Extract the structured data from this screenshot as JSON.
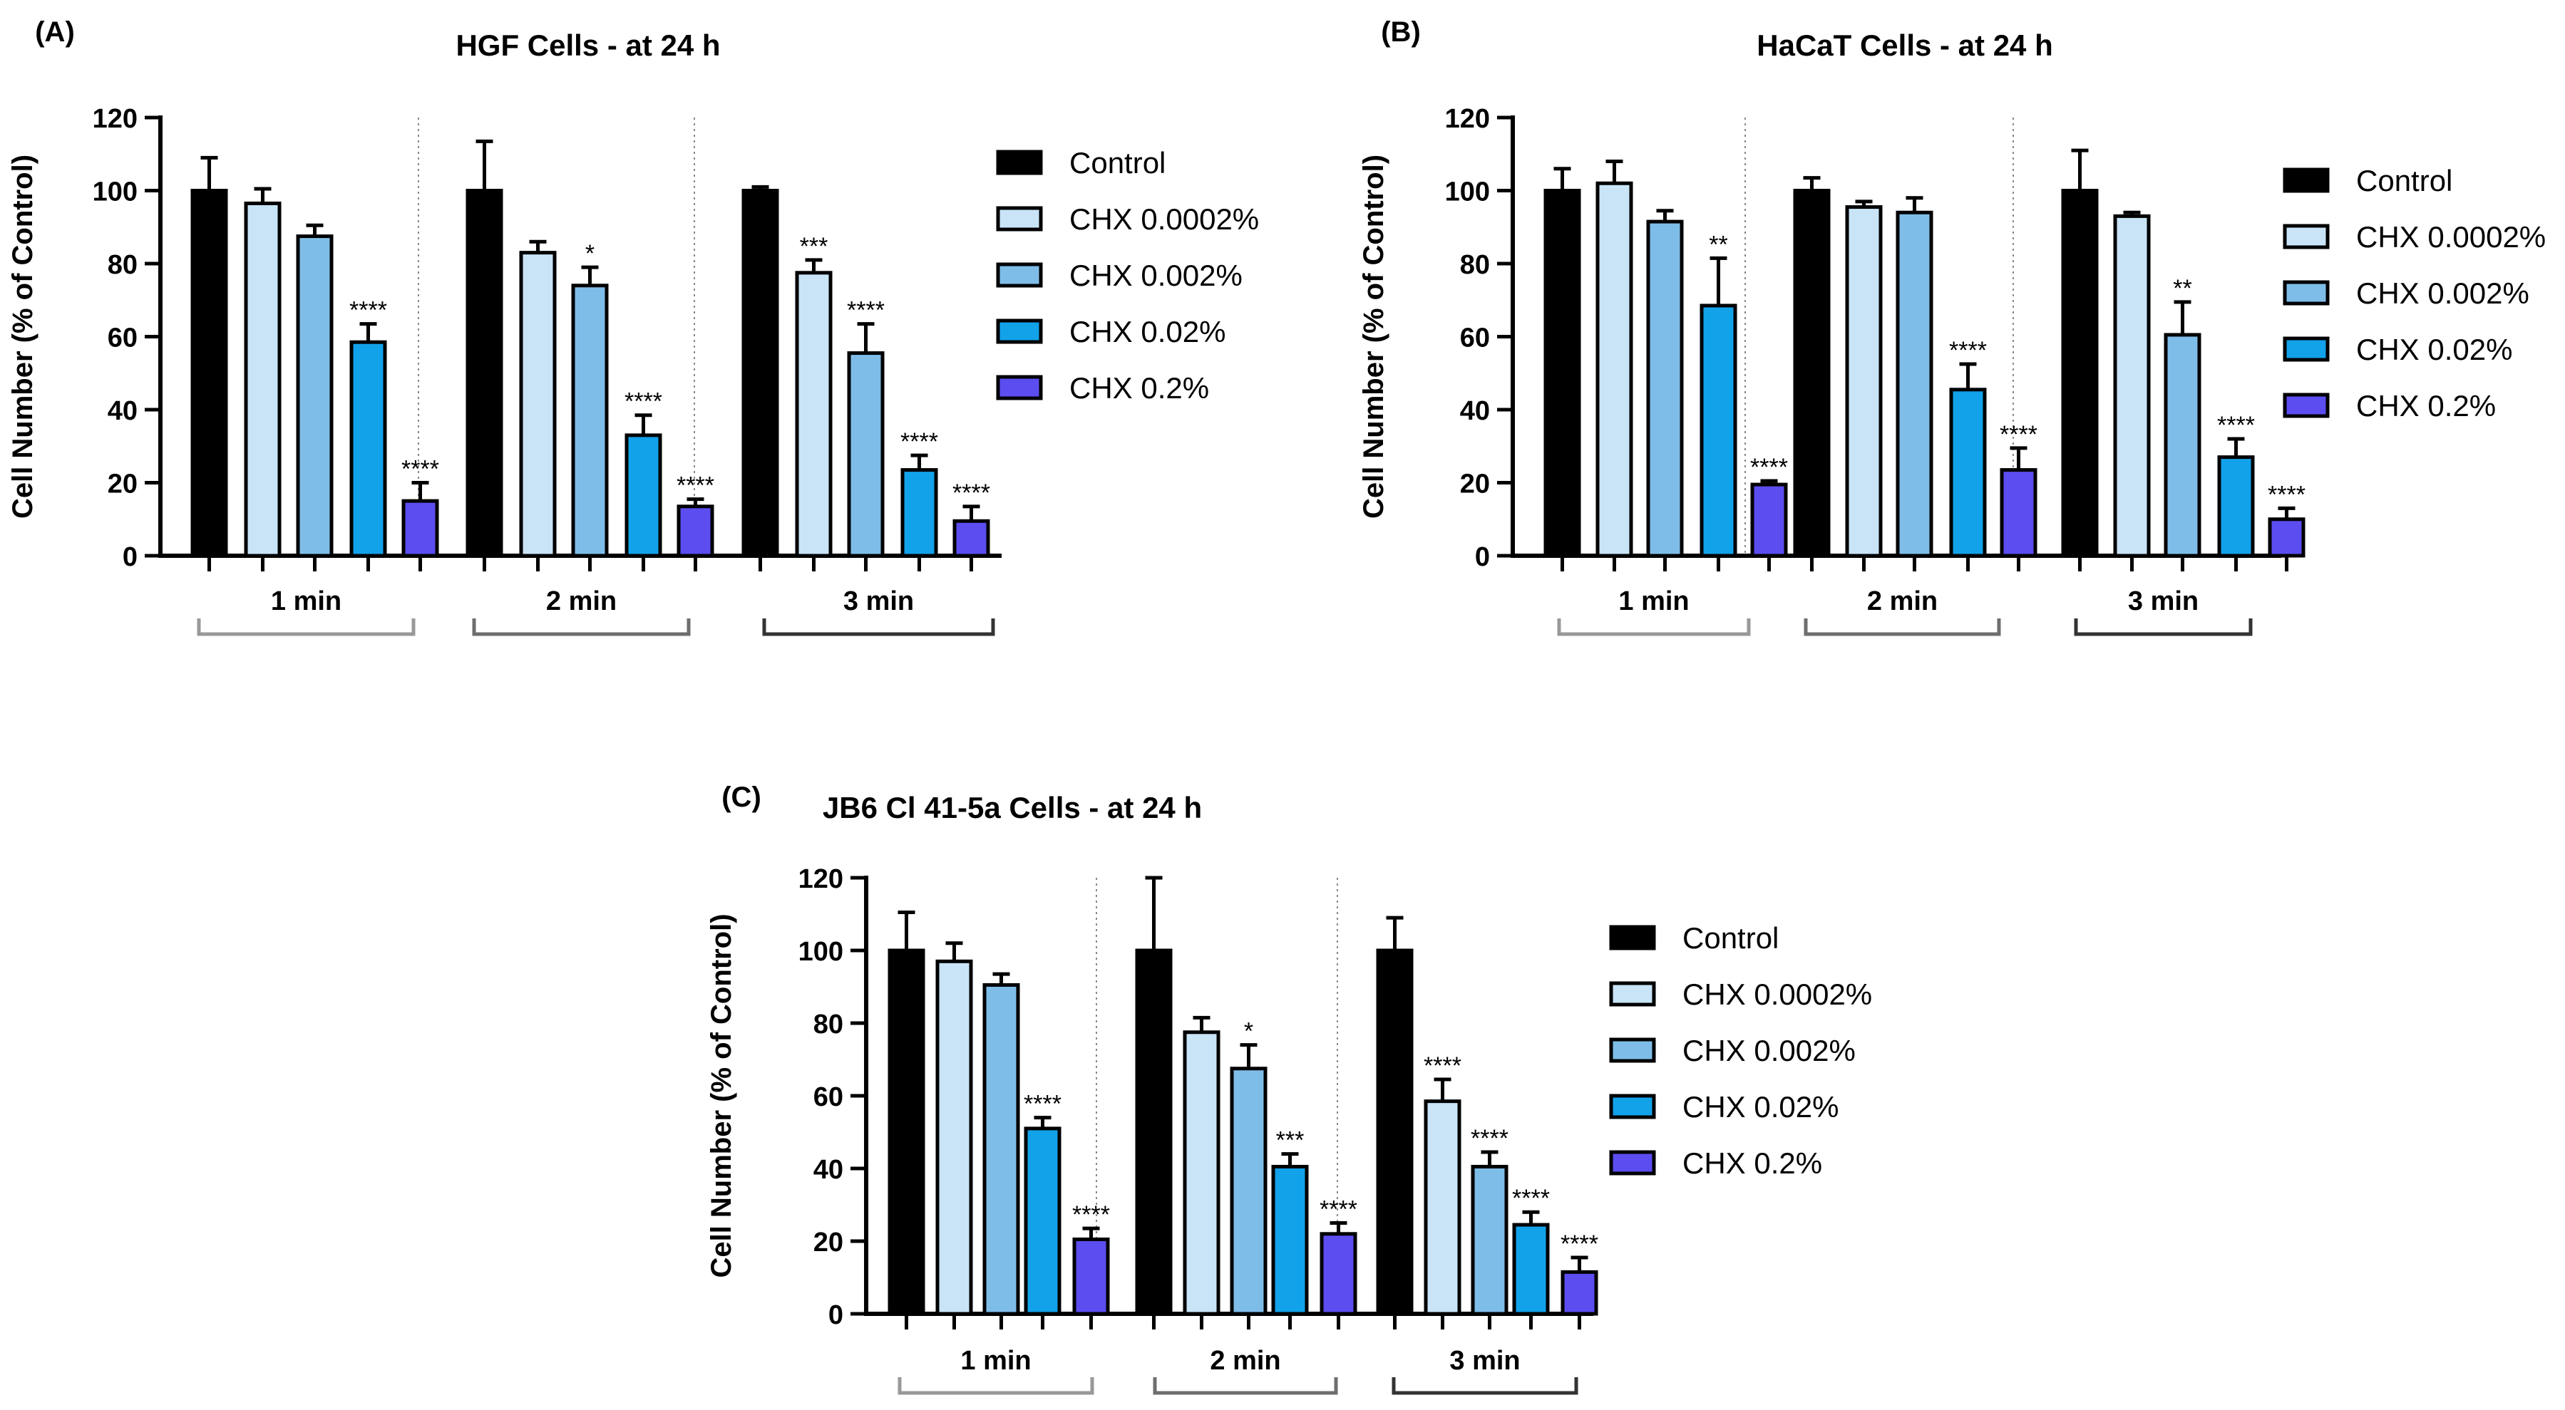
{
  "colors": {
    "Control": "#000000",
    "CHX 0.0002%": "#c9e4f7",
    "CHX 0.002%": "#7fbde9",
    "CHX 0.02%": "#12a2ea",
    "CHX 0.2%": "#5b4df0",
    "axis": "#000000",
    "bracket": [
      "#999999",
      "#6e6e6e",
      "#333333"
    ]
  },
  "chart_data": [
    {
      "type": "bar",
      "panel_label": "(A)",
      "title": "HGF Cells - at 24 h",
      "ylabel": "Cell Number (% of Control)",
      "xlabel": "",
      "ylim": [
        0,
        120
      ],
      "yticks": [
        "0",
        "20",
        "40",
        "60",
        "80",
        "100",
        "120"
      ],
      "groups": [
        "1 min",
        "2 min",
        "3 min"
      ],
      "series": [
        {
          "name": "Control",
          "values": [
            100,
            100,
            100
          ],
          "errors": [
            9,
            13.5,
            1
          ],
          "sig": [
            "",
            "",
            ""
          ]
        },
        {
          "name": "CHX 0.0002%",
          "values": [
            96.5,
            83,
            77.5
          ],
          "errors": [
            4,
            3,
            3.5
          ],
          "sig": [
            "",
            "",
            "***"
          ]
        },
        {
          "name": "CHX 0.002%",
          "values": [
            87.5,
            74,
            55.5
          ],
          "errors": [
            3,
            5,
            8
          ],
          "sig": [
            "",
            "*",
            "****"
          ]
        },
        {
          "name": "CHX 0.02%",
          "values": [
            58.5,
            33,
            23.5
          ],
          "errors": [
            5,
            5.5,
            4
          ],
          "sig": [
            "****",
            "****",
            "****"
          ]
        },
        {
          "name": "CHX 0.2%",
          "values": [
            15,
            13.5,
            9.5
          ],
          "errors": [
            5,
            2,
            4
          ],
          "sig": [
            "****",
            "****",
            "****"
          ]
        }
      ],
      "legend": [
        "Control",
        "CHX 0.0002%",
        "CHX 0.002%",
        "CHX 0.02%",
        "CHX 0.2%"
      ]
    },
    {
      "type": "bar",
      "panel_label": "(B)",
      "title": "HaCaT Cells - at 24 h",
      "ylabel": "Cell Number (% of Control)",
      "xlabel": "",
      "ylim": [
        0,
        120
      ],
      "yticks": [
        "0",
        "20",
        "40",
        "60",
        "80",
        "100",
        "120"
      ],
      "groups": [
        "1 min",
        "2 min",
        "3 min"
      ],
      "series": [
        {
          "name": "Control",
          "values": [
            100,
            100,
            100
          ],
          "errors": [
            6,
            3.5,
            11
          ],
          "sig": [
            "",
            "",
            ""
          ]
        },
        {
          "name": "CHX 0.0002%",
          "values": [
            102,
            95.5,
            93
          ],
          "errors": [
            6,
            1.5,
            1
          ],
          "sig": [
            "",
            "",
            ""
          ]
        },
        {
          "name": "CHX 0.002%",
          "values": [
            91.5,
            94,
            60.5
          ],
          "errors": [
            3,
            4,
            9
          ],
          "sig": [
            "",
            "",
            "**"
          ]
        },
        {
          "name": "CHX 0.02%",
          "values": [
            68.5,
            45.5,
            27
          ],
          "errors": [
            13,
            7,
            5
          ],
          "sig": [
            "**",
            "****",
            "****"
          ]
        },
        {
          "name": "CHX 0.2%",
          "values": [
            19.5,
            23.5,
            10
          ],
          "errors": [
            1,
            6,
            3
          ],
          "sig": [
            "****",
            "****",
            "****"
          ]
        }
      ],
      "legend": [
        "Control",
        "CHX 0.0002%",
        "CHX 0.002%",
        "CHX 0.02%",
        "CHX 0.2%"
      ]
    },
    {
      "type": "bar",
      "panel_label": "(C)",
      "title": "JB6 Cl 41-5a Cells - at 24 h",
      "ylabel": "Cell Number (% of Control)",
      "xlabel": "",
      "ylim": [
        0,
        120
      ],
      "yticks": [
        "0",
        "20",
        "40",
        "60",
        "80",
        "100",
        "120"
      ],
      "groups": [
        "1 min",
        "2 min",
        "3 min"
      ],
      "series": [
        {
          "name": "Control",
          "values": [
            100,
            100,
            100
          ],
          "errors": [
            10.5,
            20,
            9
          ],
          "sig": [
            "",
            "",
            ""
          ]
        },
        {
          "name": "CHX 0.0002%",
          "values": [
            97,
            77.5,
            58.5
          ],
          "errors": [
            5,
            4,
            6
          ],
          "sig": [
            "",
            "",
            "****"
          ]
        },
        {
          "name": "CHX 0.002%",
          "values": [
            90.5,
            67.5,
            40.5
          ],
          "errors": [
            3,
            6.5,
            4
          ],
          "sig": [
            "",
            "*",
            "****"
          ]
        },
        {
          "name": "CHX 0.02%",
          "values": [
            51,
            40.5,
            24.5
          ],
          "errors": [
            3,
            3.5,
            3.5
          ],
          "sig": [
            "****",
            "***",
            "****"
          ]
        },
        {
          "name": "CHX 0.2%",
          "values": [
            20.5,
            22,
            11.5
          ],
          "errors": [
            3,
            3,
            4
          ],
          "sig": [
            "****",
            "****",
            "****"
          ]
        }
      ],
      "legend": [
        "Control",
        "CHX 0.0002%",
        "CHX 0.002%",
        "CHX 0.02%",
        "CHX 0.2%"
      ]
    }
  ]
}
